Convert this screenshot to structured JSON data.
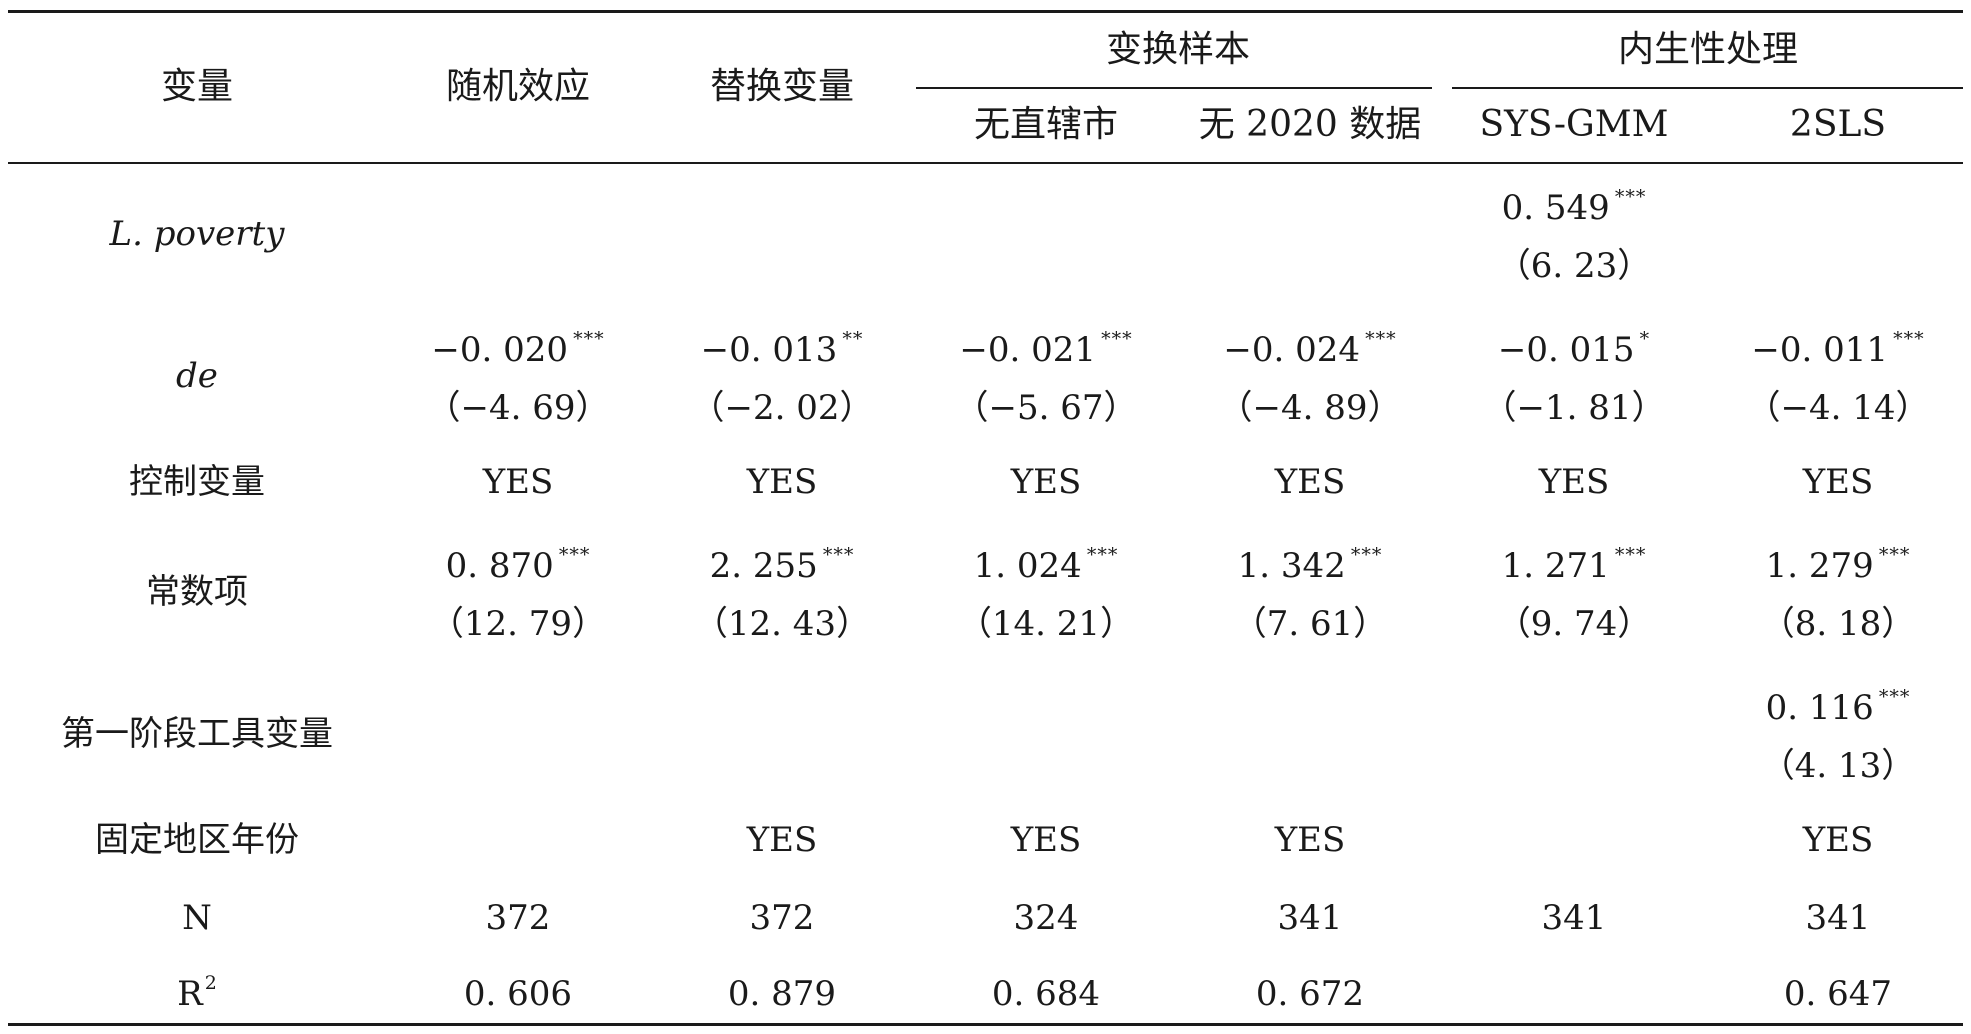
{
  "header": {
    "variable": "变量",
    "group_labels": {
      "random_effect": "随机效应",
      "replace_variable": "替换变量",
      "change_sample": "变换样本",
      "endogeneity": "内生性处理"
    },
    "sub_columns": {
      "no_municipality": "无直辖市",
      "no_2020_data": "无 2020 数据",
      "sys_gmm": "SYS-GMM",
      "tsls": "2SLS"
    }
  },
  "rows": [
    {
      "label": "L. poverty",
      "italic": true,
      "cells": [
        null,
        null,
        null,
        null,
        {
          "coef": "0. 549",
          "stars": "***",
          "t": "（6. 23）"
        },
        null
      ]
    },
    {
      "label": "de",
      "italic": true,
      "cells": [
        {
          "coef": "−0. 020",
          "stars": "***",
          "t": "（−4. 69）"
        },
        {
          "coef": "−0. 013",
          "stars": "**",
          "t": "（−2. 02）"
        },
        {
          "coef": "−0. 021",
          "stars": "***",
          "t": "（−5. 67）"
        },
        {
          "coef": "−0. 024",
          "stars": "***",
          "t": "（−4. 89）"
        },
        {
          "coef": "−0. 015",
          "stars": "*",
          "t": "（−1. 81）"
        },
        {
          "coef": "−0. 011",
          "stars": "***",
          "t": "（−4. 14）"
        }
      ]
    },
    {
      "label": "控制变量",
      "italic": false,
      "cells": [
        {
          "coef": "YES"
        },
        {
          "coef": "YES"
        },
        {
          "coef": "YES"
        },
        {
          "coef": "YES"
        },
        {
          "coef": "YES"
        },
        {
          "coef": "YES"
        }
      ]
    },
    {
      "label": "常数项",
      "italic": false,
      "cells": [
        {
          "coef": "0. 870",
          "stars": "***",
          "t": "（12. 79）"
        },
        {
          "coef": "2. 255",
          "stars": "***",
          "t": "（12. 43）"
        },
        {
          "coef": "1. 024",
          "stars": "***",
          "t": "（14. 21）"
        },
        {
          "coef": "1. 342",
          "stars": "***",
          "t": "（7. 61）"
        },
        {
          "coef": "1. 271",
          "stars": "***",
          "t": "（9. 74）"
        },
        {
          "coef": "1. 279",
          "stars": "***",
          "t": "（8. 18）"
        }
      ]
    },
    {
      "label": "第一阶段工具变量",
      "italic": false,
      "cells": [
        null,
        null,
        null,
        null,
        null,
        {
          "coef": "0. 116",
          "stars": "***",
          "t": "（4. 13）"
        }
      ]
    },
    {
      "label": "固定地区年份",
      "italic": false,
      "cells": [
        null,
        {
          "coef": "YES"
        },
        {
          "coef": "YES"
        },
        {
          "coef": "YES"
        },
        null,
        {
          "coef": "YES"
        }
      ]
    },
    {
      "label": "N",
      "italic": false,
      "cells": [
        {
          "coef": "372"
        },
        {
          "coef": "372"
        },
        {
          "coef": "324"
        },
        {
          "coef": "341"
        },
        {
          "coef": "341"
        },
        {
          "coef": "341"
        }
      ]
    },
    {
      "label": "R",
      "label_sup": "2",
      "italic": false,
      "cells": [
        {
          "coef": "0. 606"
        },
        {
          "coef": "0. 879"
        },
        {
          "coef": "0. 684"
        },
        {
          "coef": "0. 672"
        },
        null,
        {
          "coef": "0. 647"
        }
      ]
    }
  ]
}
